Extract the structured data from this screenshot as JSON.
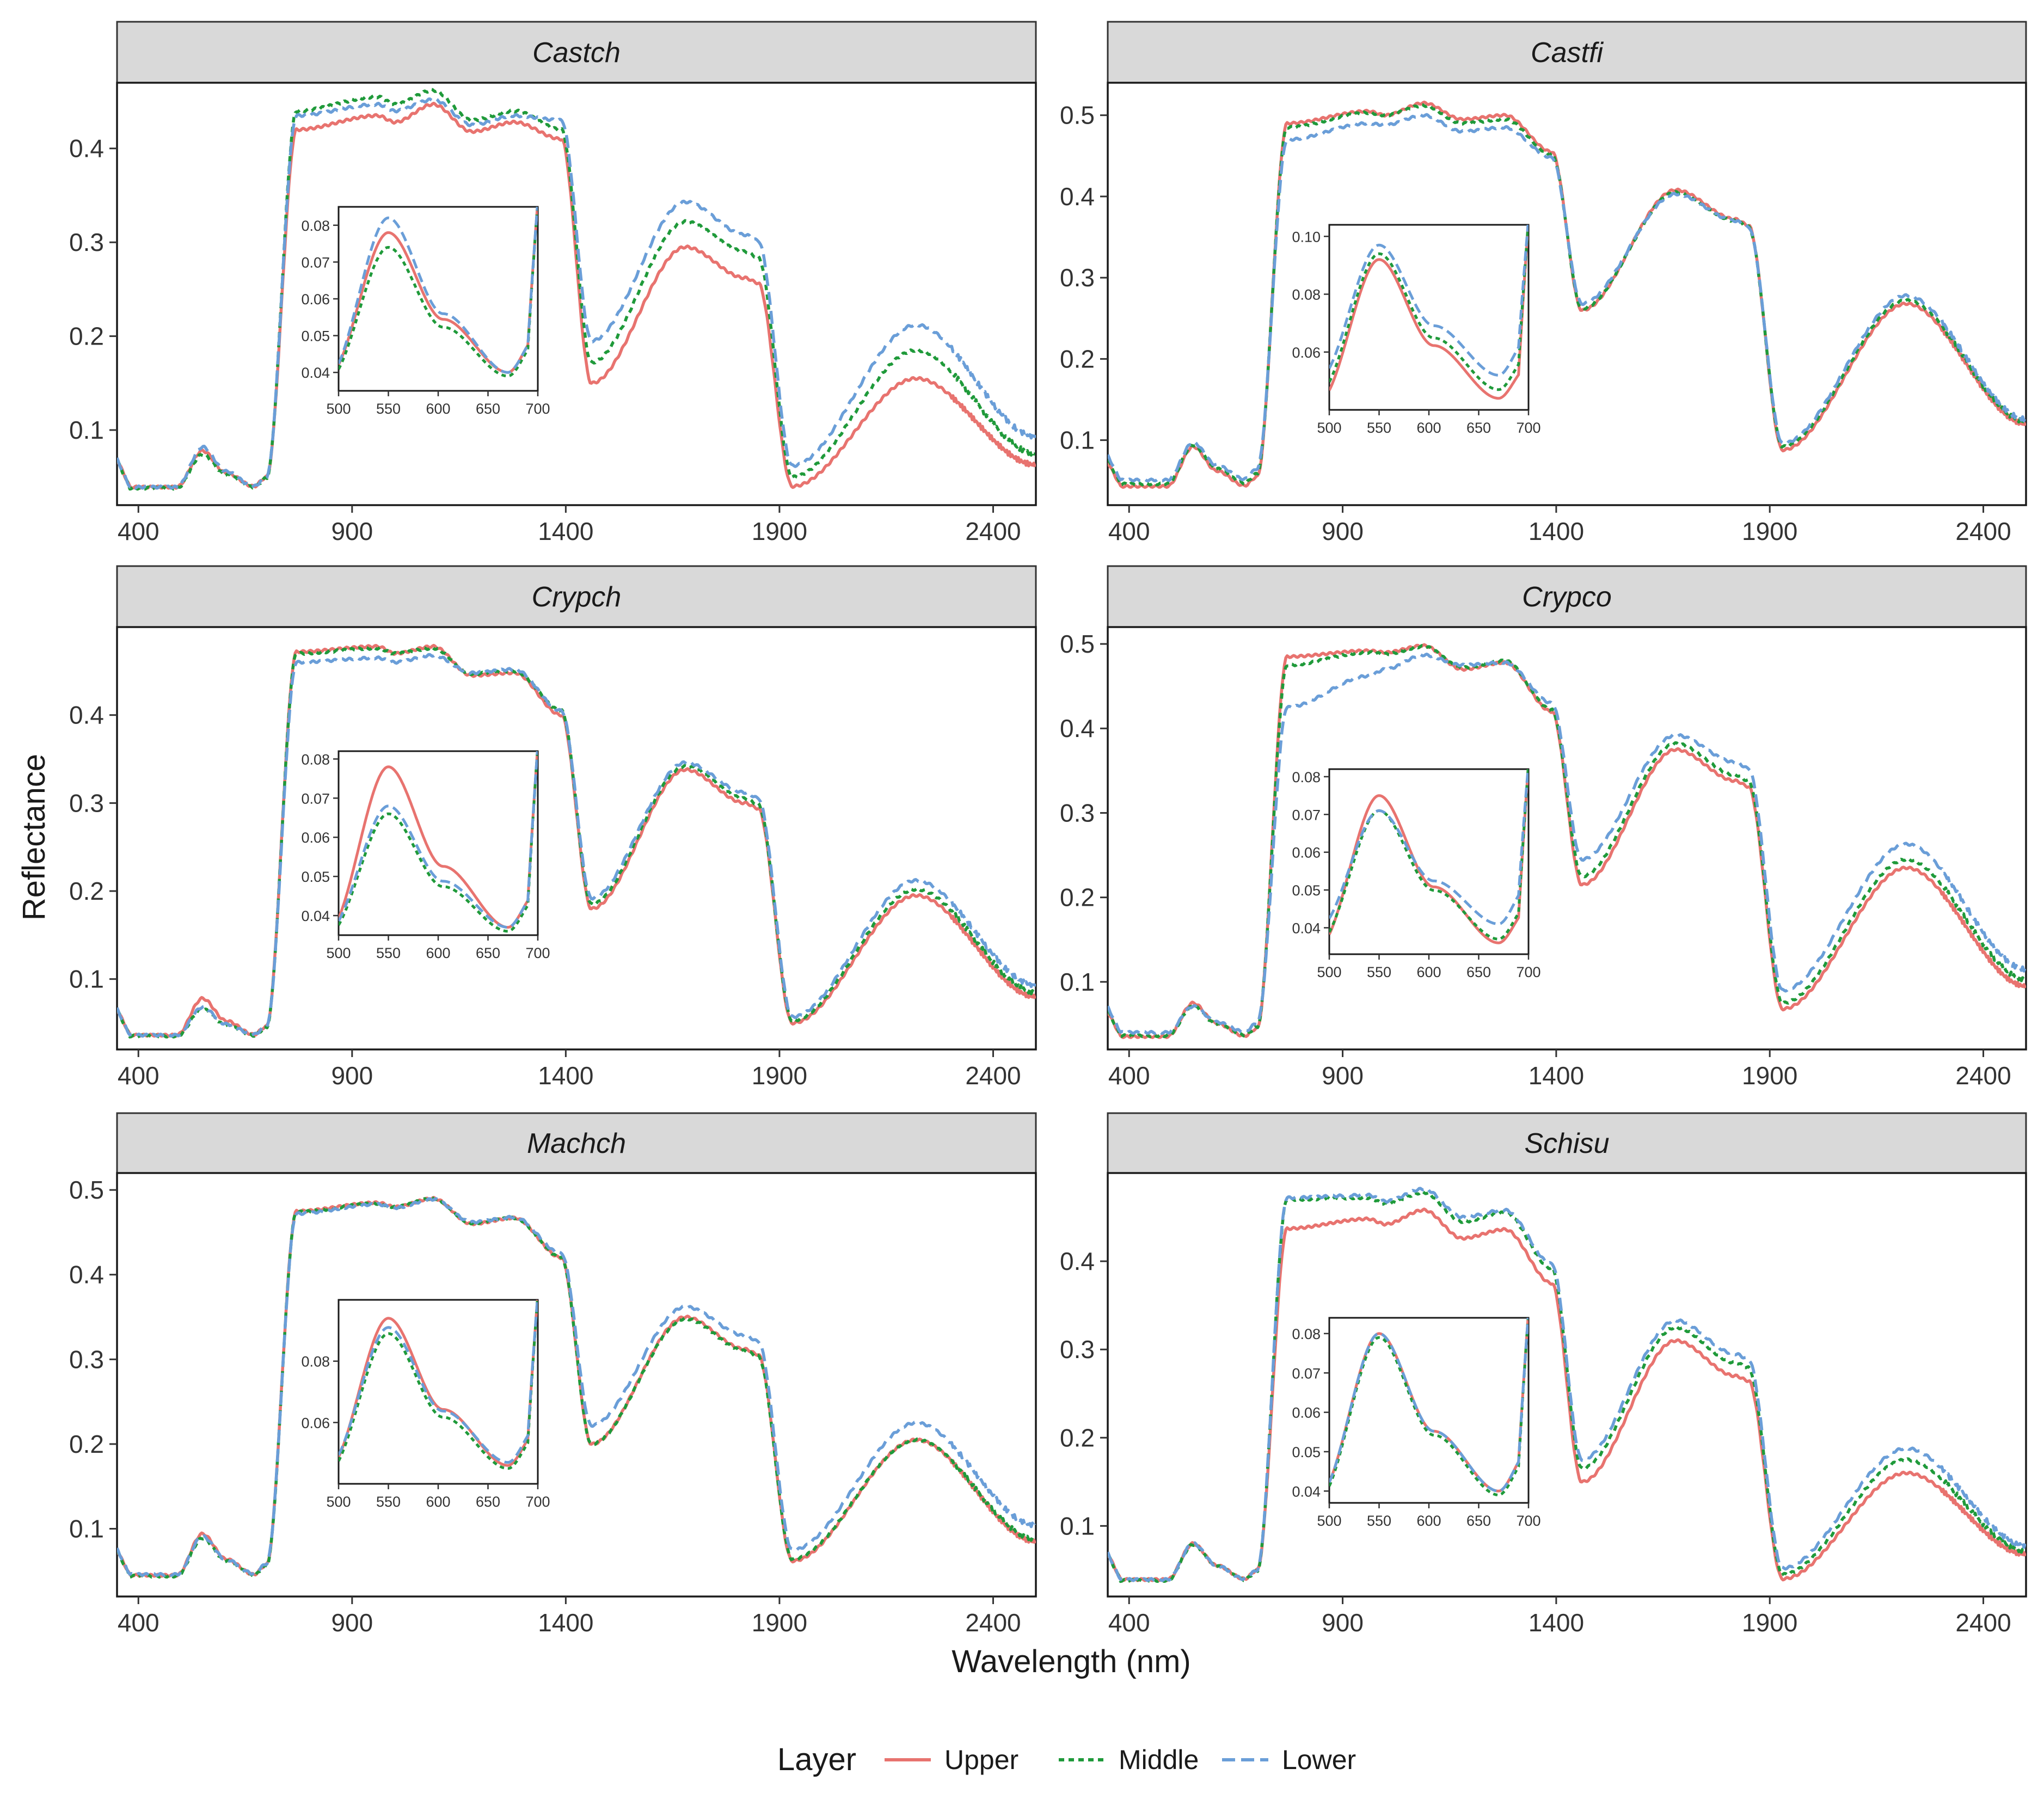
{
  "chart_data": {
    "type": "line",
    "ylabel": "Reflectance",
    "xlabel": "Wavelength (nm)",
    "legend": {
      "title": "Layer",
      "position": "bottom",
      "entries": [
        "Upper",
        "Middle",
        "Lower"
      ]
    },
    "series_colors": [
      "#e8736f",
      "#1f9a3a",
      "#6a9ed8"
    ],
    "series_dash": [
      "solid",
      "dotted",
      "dashed"
    ],
    "xlim": [
      350,
      2500
    ],
    "x_ticks": [
      400,
      900,
      1400,
      1900,
      2400
    ],
    "x_tick_labels": [
      "400",
      "900",
      "1400",
      "1900",
      "2400"
    ],
    "inset_xlim": [
      500,
      700
    ],
    "inset_x_ticks": [
      500,
      550,
      600,
      650,
      700
    ],
    "inset_x_tick_labels": [
      "500",
      "550",
      "600",
      "650",
      "700"
    ],
    "panels": [
      {
        "title": "Castch",
        "ylim": [
          0.02,
          0.47
        ],
        "y_ticks": [
          0.1,
          0.2,
          0.3,
          0.4
        ],
        "y_tick_labels": [
          "0.1",
          "0.2",
          "0.3",
          "0.4"
        ],
        "profiles": {
          "Upper": {
            "gp": 0.078,
            "redTrough": 0.04,
            "pre": 0.42,
            "nir": [
              0.435,
              0.428,
              0.447,
              0.418,
              0.428,
              0.41
            ],
            "post": [
              0.15,
              0.295,
              0.262,
              0.04,
              0.155,
              0.063
            ]
          },
          "Middle": {
            "gp": 0.074,
            "redTrough": 0.039,
            "pre": 0.44,
            "nir": [
              0.455,
              0.447,
              0.462,
              0.43,
              0.44,
              0.42
            ],
            "post": [
              0.172,
              0.322,
              0.29,
              0.05,
              0.185,
              0.075
            ]
          },
          "Lower": {
            "gp": 0.082,
            "redTrough": 0.04,
            "pre": 0.435,
            "nir": [
              0.447,
              0.44,
              0.452,
              0.425,
              0.435,
              0.43
            ],
            "post": [
              0.195,
              0.343,
              0.308,
              0.062,
              0.212,
              0.093
            ]
          }
        },
        "inset": {
          "ylim": [
            0.035,
            0.085
          ],
          "y_ticks": [
            0.04,
            0.05,
            0.06,
            0.07,
            0.08
          ],
          "y_tick_labels": [
            "0.04",
            "0.05",
            "0.06",
            "0.07",
            "0.08"
          ]
        }
      },
      {
        "title": "Castfi",
        "ylim": [
          0.02,
          0.54
        ],
        "y_ticks": [
          0.1,
          0.2,
          0.3,
          0.4,
          0.5
        ],
        "y_tick_labels": [
          "0.1",
          "0.2",
          "0.3",
          "0.4",
          "0.5"
        ],
        "profiles": {
          "Upper": {
            "gp": 0.092,
            "redTrough": 0.044,
            "pre": 0.49,
            "nir": [
              0.505,
              0.5,
              0.515,
              0.495,
              0.5,
              0.455
            ],
            "post": [
              0.26,
              0.408,
              0.372,
              0.088,
              0.268,
              0.12
            ]
          },
          "Middle": {
            "gp": 0.094,
            "redTrough": 0.047,
            "pre": 0.485,
            "nir": [
              0.503,
              0.5,
              0.512,
              0.49,
              0.495,
              0.452
            ],
            "post": [
              0.262,
              0.405,
              0.37,
              0.092,
              0.272,
              0.123
            ]
          },
          "Lower": {
            "gp": 0.097,
            "redTrough": 0.052,
            "pre": 0.47,
            "nir": [
              0.49,
              0.488,
              0.5,
              0.48,
              0.485,
              0.448
            ],
            "post": [
              0.268,
              0.403,
              0.37,
              0.096,
              0.278,
              0.126
            ]
          }
        },
        "inset": {
          "ylim": [
            0.04,
            0.104
          ],
          "y_ticks": [
            0.06,
            0.08,
            0.1
          ],
          "y_tick_labels": [
            "0.06",
            "0.08",
            "0.10"
          ]
        }
      },
      {
        "title": "Crypch",
        "ylim": [
          0.02,
          0.5
        ],
        "y_ticks": [
          0.1,
          0.2,
          0.3,
          0.4
        ],
        "y_tick_labels": [
          "0.1",
          "0.2",
          "0.3",
          "0.4"
        ],
        "profiles": {
          "Upper": {
            "gp": 0.078,
            "redTrough": 0.037,
            "pre": 0.472,
            "nir": [
              0.478,
              0.47,
              0.478,
              0.445,
              0.448,
              0.4
            ],
            "post": [
              0.18,
              0.338,
              0.3,
              0.05,
              0.195,
              0.08
            ]
          },
          "Middle": {
            "gp": 0.066,
            "redTrough": 0.036,
            "pre": 0.47,
            "nir": [
              0.476,
              0.47,
              0.476,
              0.447,
              0.45,
              0.405
            ],
            "post": [
              0.185,
              0.342,
              0.305,
              0.053,
              0.202,
              0.085
            ]
          },
          "Lower": {
            "gp": 0.068,
            "redTrough": 0.037,
            "pre": 0.46,
            "nir": [
              0.465,
              0.46,
              0.468,
              0.448,
              0.452,
              0.405
            ],
            "post": [
              0.192,
              0.346,
              0.312,
              0.057,
              0.212,
              0.093
            ]
          }
        },
        "inset": {
          "ylim": [
            0.035,
            0.082
          ],
          "y_ticks": [
            0.04,
            0.05,
            0.06,
            0.07,
            0.08
          ],
          "y_tick_labels": [
            "0.04",
            "0.05",
            "0.06",
            "0.07",
            "0.08"
          ]
        }
      },
      {
        "title": "Crypco",
        "ylim": [
          0.02,
          0.52
        ],
        "y_ticks": [
          0.1,
          0.2,
          0.3,
          0.4,
          0.5
        ],
        "y_tick_labels": [
          "0.1",
          "0.2",
          "0.3",
          "0.4",
          "0.5"
        ],
        "profiles": {
          "Upper": {
            "gp": 0.075,
            "redTrough": 0.036,
            "pre": 0.485,
            "nir": [
              0.492,
              0.49,
              0.498,
              0.47,
              0.478,
              0.42
            ],
            "post": [
              0.215,
              0.375,
              0.338,
              0.068,
              0.235,
              0.095
            ]
          },
          "Middle": {
            "gp": 0.071,
            "redTrough": 0.037,
            "pre": 0.475,
            "nir": [
              0.49,
              0.488,
              0.497,
              0.472,
              0.48,
              0.422
            ],
            "post": [
              0.225,
              0.382,
              0.345,
              0.075,
              0.245,
              0.103
            ]
          },
          "Lower": {
            "gp": 0.071,
            "redTrough": 0.041,
            "pre": 0.425,
            "nir": [
              0.462,
              0.47,
              0.487,
              0.475,
              0.478,
              0.43
            ],
            "post": [
              0.245,
              0.392,
              0.36,
              0.09,
              0.263,
              0.115
            ]
          }
        },
        "inset": {
          "ylim": [
            0.033,
            0.082
          ],
          "y_ticks": [
            0.04,
            0.05,
            0.06,
            0.07,
            0.08
          ],
          "y_tick_labels": [
            "0.04",
            "0.05",
            "0.06",
            "0.07",
            "0.08"
          ]
        }
      },
      {
        "title": "Machch",
        "ylim": [
          0.02,
          0.52
        ],
        "y_ticks": [
          0.1,
          0.2,
          0.3,
          0.4,
          0.5
        ],
        "y_tick_labels": [
          "0.1",
          "0.2",
          "0.3",
          "0.4",
          "0.5"
        ],
        "profiles": {
          "Upper": {
            "gp": 0.094,
            "redTrough": 0.046,
            "pre": 0.475,
            "nir": [
              0.485,
              0.48,
              0.49,
              0.46,
              0.467,
              0.42
            ],
            "post": [
              0.2,
              0.35,
              0.312,
              0.062,
              0.205,
              0.085
            ]
          },
          "Middle": {
            "gp": 0.089,
            "redTrough": 0.045,
            "pre": 0.474,
            "nir": [
              0.484,
              0.48,
              0.49,
              0.461,
              0.467,
              0.42
            ],
            "post": [
              0.2,
              0.348,
              0.31,
              0.064,
              0.205,
              0.088
            ]
          },
          "Lower": {
            "gp": 0.091,
            "redTrough": 0.047,
            "pre": 0.472,
            "nir": [
              0.483,
              0.479,
              0.489,
              0.462,
              0.468,
              0.425
            ],
            "post": [
              0.222,
              0.362,
              0.328,
              0.075,
              0.225,
              0.104
            ]
          }
        },
        "inset": {
          "ylim": [
            0.04,
            0.1
          ],
          "y_ticks": [
            0.06,
            0.08
          ],
          "y_tick_labels": [
            "0.06",
            "0.08"
          ]
        }
      },
      {
        "title": "Schisu",
        "ylim": [
          0.02,
          0.5
        ],
        "y_ticks": [
          0.1,
          0.2,
          0.3,
          0.4
        ],
        "y_tick_labels": [
          "0.1",
          "0.2",
          "0.3",
          "0.4"
        ],
        "profiles": {
          "Upper": {
            "gp": 0.08,
            "redTrough": 0.04,
            "pre": 0.437,
            "nir": [
              0.448,
              0.442,
              0.458,
              0.426,
              0.436,
              0.375
            ],
            "post": [
              0.15,
              0.31,
              0.27,
              0.04,
              0.16,
              0.068
            ]
          },
          "Middle": {
            "gp": 0.079,
            "redTrough": 0.039,
            "pre": 0.47,
            "nir": [
              0.472,
              0.465,
              0.478,
              0.445,
              0.455,
              0.392
            ],
            "post": [
              0.165,
              0.325,
              0.285,
              0.045,
              0.175,
              0.072
            ]
          },
          "Lower": {
            "gp": 0.08,
            "redTrough": 0.04,
            "pre": 0.472,
            "nir": [
              0.475,
              0.468,
              0.482,
              0.45,
              0.458,
              0.397
            ],
            "post": [
              0.175,
              0.333,
              0.295,
              0.052,
              0.188,
              0.078
            ]
          }
        },
        "inset": {
          "ylim": [
            0.037,
            0.084
          ],
          "y_ticks": [
            0.04,
            0.05,
            0.06,
            0.07,
            0.08
          ],
          "y_tick_labels": [
            "0.04",
            "0.05",
            "0.06",
            "0.07",
            "0.08"
          ]
        }
      }
    ]
  }
}
